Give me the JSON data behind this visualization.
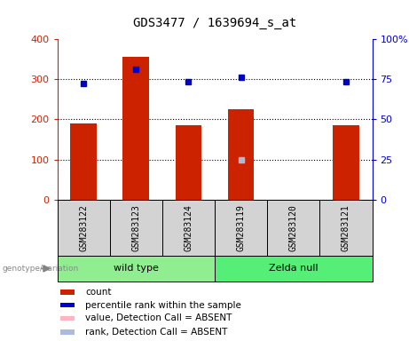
{
  "title": "GDS3477 / 1639694_s_at",
  "samples": [
    "GSM283122",
    "GSM283123",
    "GSM283124",
    "GSM283119",
    "GSM283120",
    "GSM283121"
  ],
  "red_bars": [
    190,
    355,
    185,
    225,
    0,
    185
  ],
  "blue_dots_left_scale": [
    290,
    325,
    295,
    305,
    null,
    295
  ],
  "absent_blue_left_scale": [
    null,
    null,
    null,
    100,
    null,
    null
  ],
  "groups": [
    {
      "label": "wild type",
      "indices": [
        0,
        1,
        2
      ],
      "color": "#90EE90"
    },
    {
      "label": "Zelda null",
      "indices": [
        3,
        4,
        5
      ],
      "color": "#55EE77"
    }
  ],
  "ylim_left": [
    0,
    400
  ],
  "ylim_right": [
    0,
    100
  ],
  "yticks_left": [
    0,
    100,
    200,
    300,
    400
  ],
  "yticks_right": [
    0,
    25,
    50,
    75,
    100
  ],
  "ytick_labels_left": [
    "0",
    "100",
    "200",
    "300",
    "400"
  ],
  "ytick_labels_right": [
    "0",
    "25",
    "50",
    "75",
    "100%"
  ],
  "bar_color": "#CC2200",
  "dot_color": "#0000CC",
  "absent_value_color": "#FFB6C1",
  "absent_rank_color": "#AABBDD",
  "group_label_color": "#888888",
  "legend_items": [
    {
      "label": "count",
      "color": "#CC2200"
    },
    {
      "label": "percentile rank within the sample",
      "color": "#0000CC"
    },
    {
      "label": "value, Detection Call = ABSENT",
      "color": "#FFB6C1"
    },
    {
      "label": "rank, Detection Call = ABSENT",
      "color": "#AABBDD"
    }
  ],
  "bar_width": 0.5,
  "sample_area_color": "#D3D3D3",
  "sample_area_edge": "#000000"
}
